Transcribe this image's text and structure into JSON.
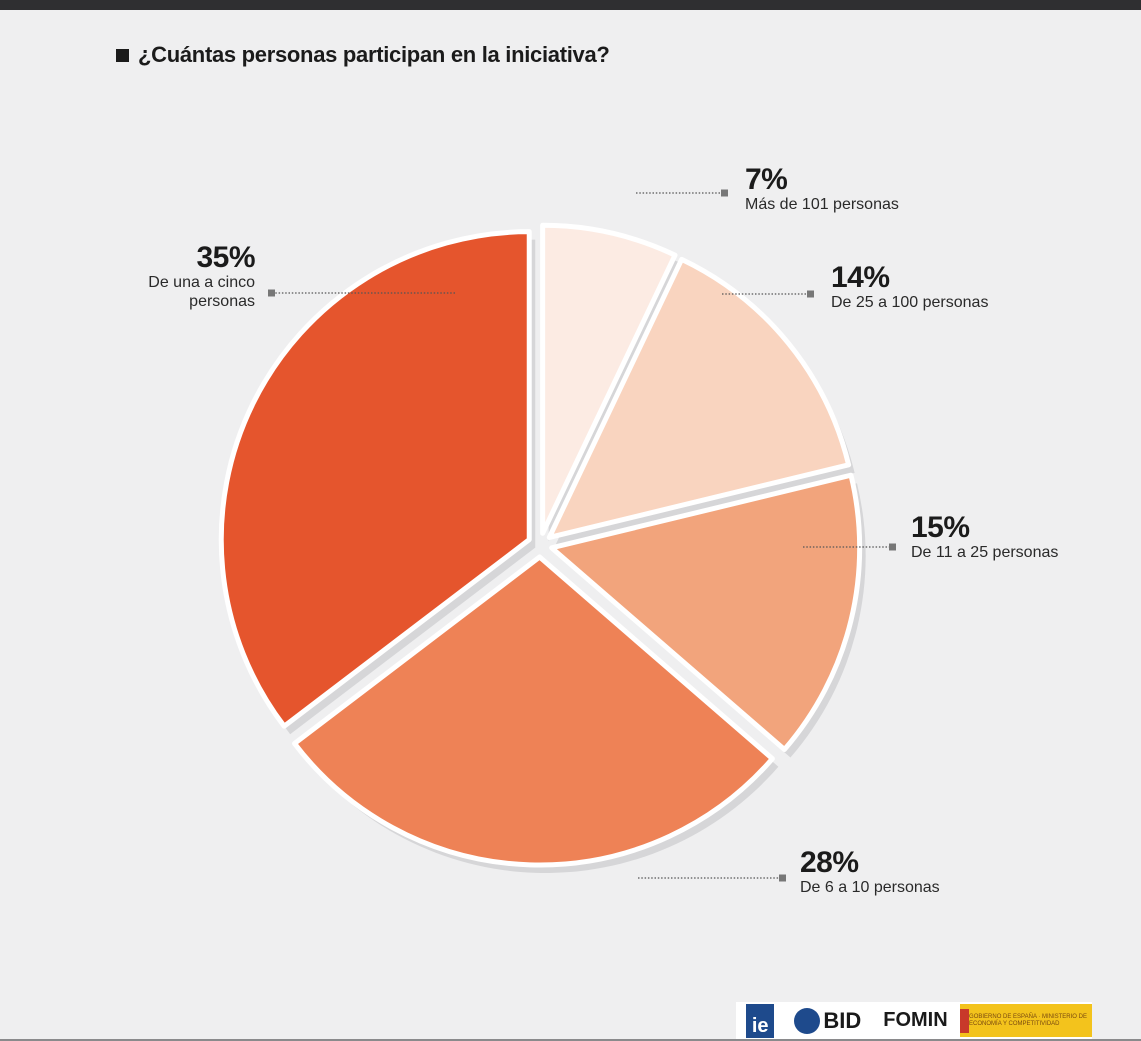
{
  "title": "¿Cuántas personas participan en la iniciativa?",
  "chart_data": {
    "type": "pie",
    "title": "¿Cuántas personas participan en la iniciativa?",
    "slices": [
      {
        "label": "Más de 101 personas",
        "value": 7,
        "pct_label": "7%",
        "color": "#fcebe3"
      },
      {
        "label": "De 25 a 100 personas",
        "value": 14,
        "pct_label": "14%",
        "color": "#f9d4bf"
      },
      {
        "label": "De 11 a 25 personas",
        "value": 15,
        "pct_label": "15%",
        "color": "#f2a47c"
      },
      {
        "label": "De 6 a 10 personas",
        "value": 28,
        "pct_label": "28%",
        "color": "#ee8256"
      },
      {
        "label": "De una a cinco personas",
        "value": 35,
        "pct_label": "35%",
        "color": "#e5552d"
      }
    ]
  },
  "labels": {
    "s0": {
      "pct": "7%",
      "desc": "Más de 101 personas"
    },
    "s1": {
      "pct": "14%",
      "desc": "De 25 a 100 personas"
    },
    "s2": {
      "pct": "15%",
      "desc": "De 11 a 25 personas"
    },
    "s3": {
      "pct": "28%",
      "desc": "De 6 a 10 personas"
    },
    "s4": {
      "pct": "35%",
      "desc_line1": "De una a cinco",
      "desc_line2": "personas"
    }
  },
  "logos": {
    "ie": "ie",
    "bid": "BID",
    "fomin": "FOMIN",
    "gov_text": "GOBIERNO DE ESPAÑA · MINISTERIO DE ECONOMÍA Y COMPETITIVIDAD"
  }
}
